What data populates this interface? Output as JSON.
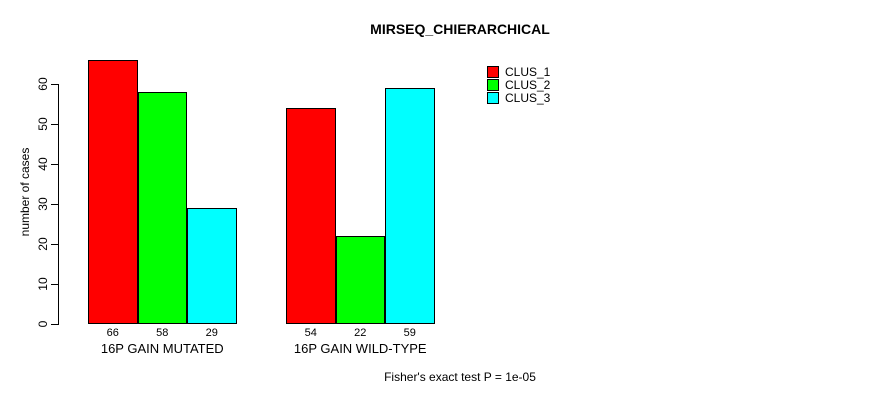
{
  "title": "MIRSEQ_CHIERARCHICAL",
  "footer": "Fisher's exact test P = 1e-05",
  "chart_data": {
    "type": "bar",
    "title": "MIRSEQ_CHIERARCHICAL",
    "xlabel": "",
    "ylabel": "number of cases",
    "categories": [
      "16P GAIN MUTATED",
      "16P GAIN WILD-TYPE"
    ],
    "series": [
      {
        "name": "CLUS_1",
        "color": "#ff0000",
        "values": [
          66,
          54
        ]
      },
      {
        "name": "CLUS_2",
        "color": "#00ff00",
        "values": [
          58,
          22
        ]
      },
      {
        "name": "CLUS_3",
        "color": "#00ffff",
        "values": [
          29,
          59
        ]
      }
    ],
    "bar_value_labels": [
      [
        "66",
        "58",
        "29"
      ],
      [
        "54",
        "22",
        "59"
      ]
    ],
    "y_ticks": [
      0,
      10,
      20,
      30,
      40,
      50,
      60
    ],
    "ylim": [
      0,
      66
    ],
    "grid": false,
    "legend_position": "top-right",
    "annotation": "Fisher's exact test P = 1e-05"
  }
}
